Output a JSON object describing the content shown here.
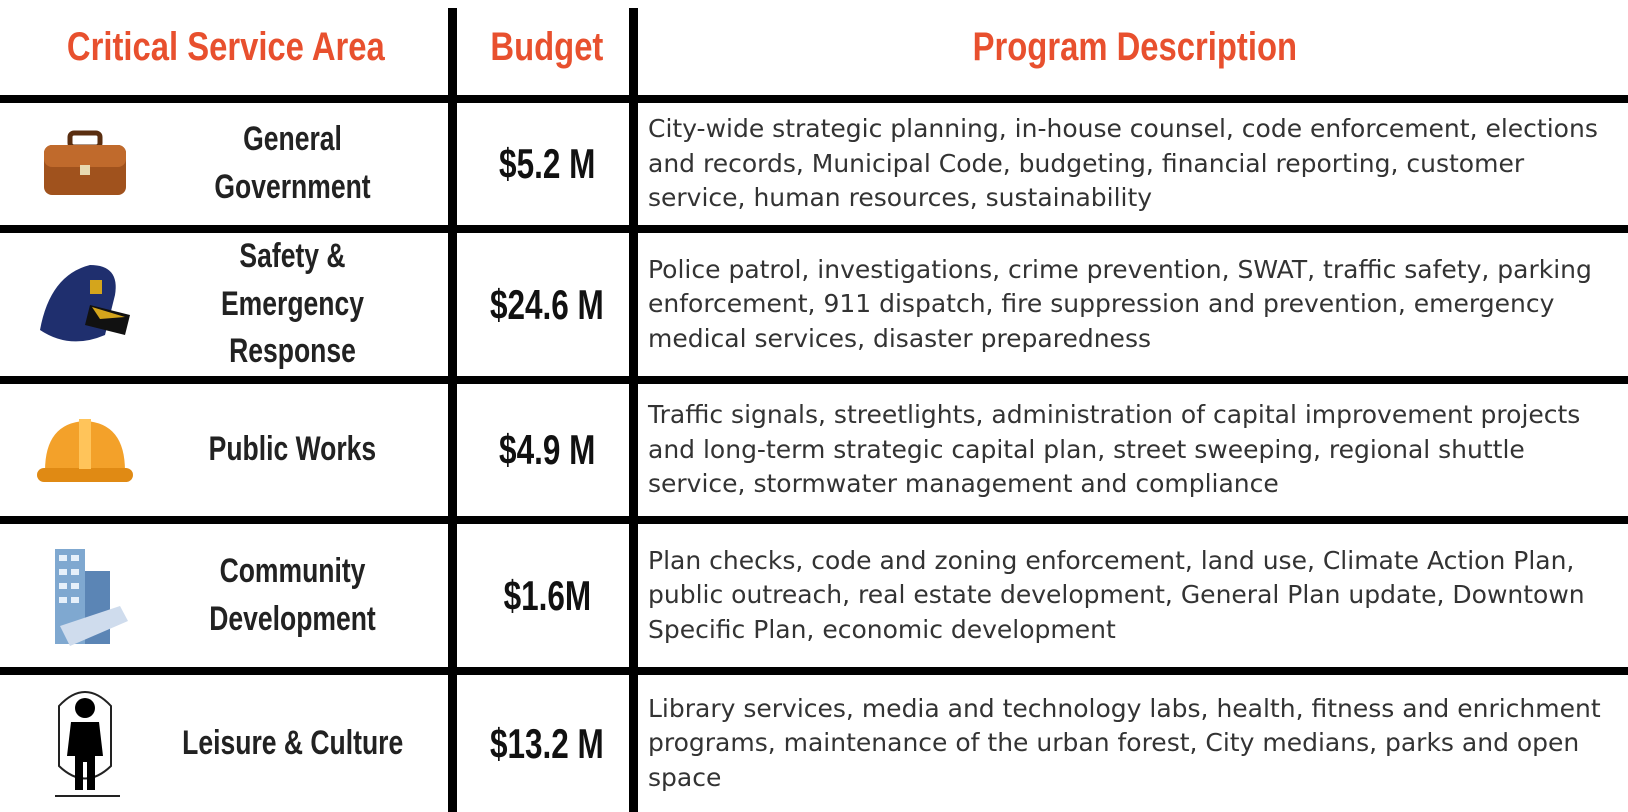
{
  "table": {
    "header": [
      "Critical Service Area",
      "Budget",
      "Program Description"
    ],
    "rows": [
      [
        "General Government",
        "$5.2 M",
        "City-wide strategic planning, in-house counsel, code enforcement, elections and records, Municipal Code, budgeting, financial reporting, customer service, human resources, sustainability"
      ],
      [
        "Safety & Emergency Response",
        "$24.6 M",
        "Police patrol, investigations, crime prevention, SWAT, traffic safety, parking enforcement, 911 dispatch, fire suppression and prevention, emergency medical services, disaster preparedness"
      ],
      [
        "Public Works",
        "$4.9 M",
        "Traffic signals, streetlights, administration of capital improvement projects and long-term strategic capital plan, street sweeping, regional shuttle service, stormwater management and compliance"
      ],
      [
        "Community Development",
        "$1.6M",
        "Plan checks, code and zoning enforcement, land use, Climate Action Plan, public outreach, real estate development, General Plan update, Downtown Specific Plan, economic development"
      ],
      [
        "Leisure & Culture",
        "$13.2 M",
        "Library services, media and technology labs, health, fitness and enrichment programs, maintenance of the urban forest, City medians, parks and open space"
      ]
    ]
  }
}
